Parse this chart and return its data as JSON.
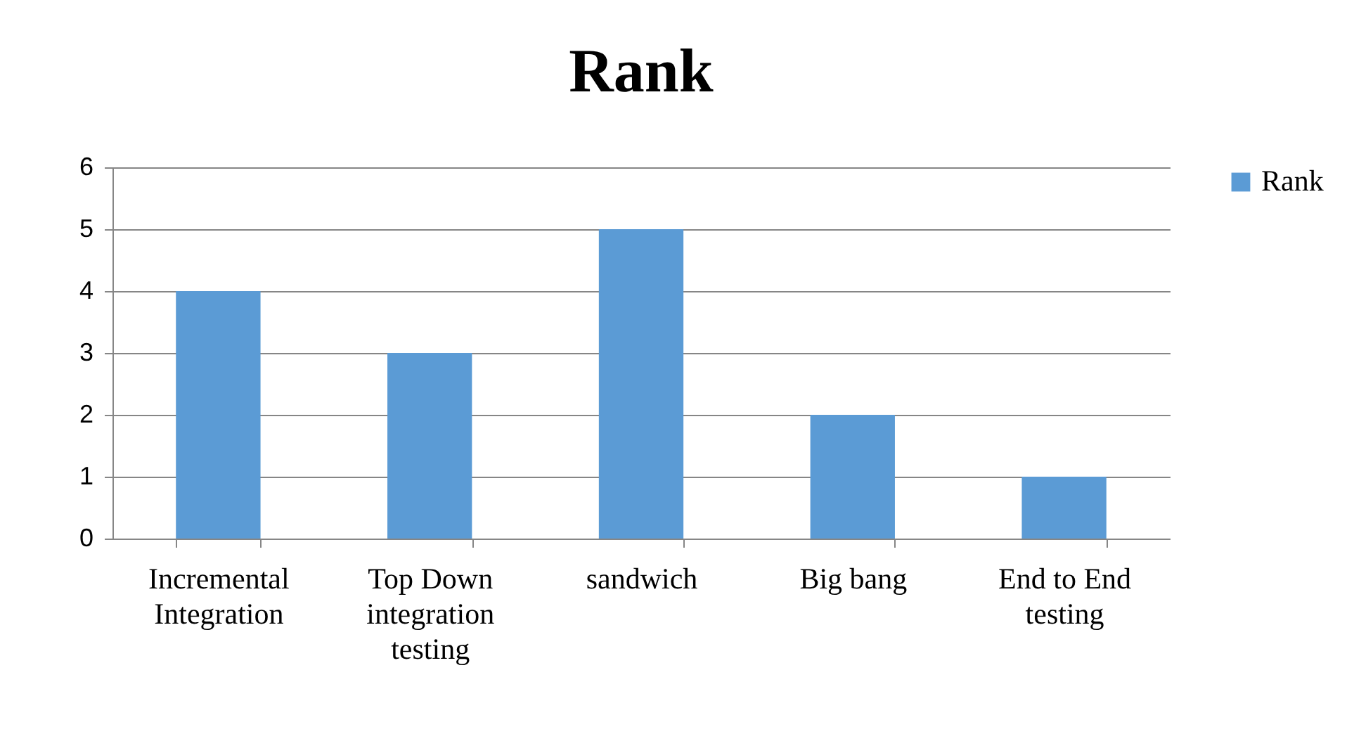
{
  "chart_data": {
    "type": "bar",
    "title": "Rank",
    "categories": [
      "Incremental Integration",
      "Top Down integration testing",
      "sandwich",
      "Big bang",
      "End to End testing"
    ],
    "series": [
      {
        "name": "Rank",
        "color": "#5b9bd5",
        "values": [
          4,
          3,
          5,
          2,
          1
        ]
      }
    ],
    "ylim": [
      0,
      6
    ],
    "yticks": [
      0,
      1,
      2,
      3,
      4,
      5,
      6
    ],
    "grid": "y",
    "legend": "right"
  }
}
